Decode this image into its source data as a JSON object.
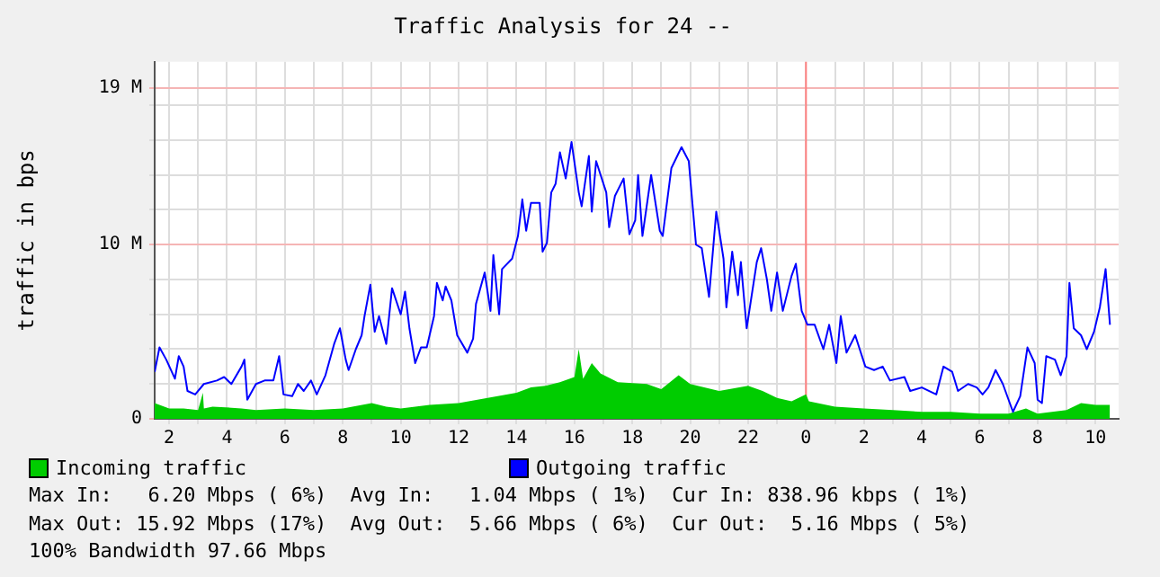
{
  "chart_data": {
    "type": "line",
    "title": "Traffic Analysis for 24 --",
    "ylabel": "traffic in bps",
    "xlim": [
      "--01-01T01:30",
      "--01-02T10:48"
    ],
    "xticks": [
      {
        "value": "--01-01T02:00",
        "label": "2"
      },
      {
        "value": "--01-01T03:00",
        "label": null
      },
      {
        "value": "--01-01T04:00",
        "label": "4"
      },
      {
        "value": "--01-01T05:00",
        "label": null
      },
      {
        "value": "--01-01T06:00",
        "label": "6"
      },
      {
        "value": "--01-01T07:00",
        "label": null
      },
      {
        "value": "--01-01T08:00",
        "label": "8"
      },
      {
        "value": "--01-01T09:00",
        "label": null
      },
      {
        "value": "--01-01T10:00",
        "label": "10"
      },
      {
        "value": "--01-01T11:00",
        "label": null
      },
      {
        "value": "--01-01T12:00",
        "label": "12"
      },
      {
        "value": "--01-01T13:00",
        "label": null
      },
      {
        "value": "--01-01T14:00",
        "label": "14"
      },
      {
        "value": "--01-01T15:00",
        "label": null
      },
      {
        "value": "--01-01T16:00",
        "label": "16"
      },
      {
        "value": "--01-01T17:00",
        "label": null
      },
      {
        "value": "--01-01T18:00",
        "label": "18"
      },
      {
        "value": "--01-01T19:00",
        "label": null
      },
      {
        "value": "--01-01T20:00",
        "label": "20"
      },
      {
        "value": "--01-01T21:00",
        "label": null
      },
      {
        "value": "--01-01T22:00",
        "label": "22"
      },
      {
        "value": "--01-01T23:00",
        "label": null
      },
      {
        "value": "--01-02T00:00",
        "label": "0"
      },
      {
        "value": "--01-02T01:00",
        "label": null
      },
      {
        "value": "--01-02T02:00",
        "label": "2"
      },
      {
        "value": "--01-02T03:00",
        "label": null
      },
      {
        "value": "--01-02T04:00",
        "label": "4"
      },
      {
        "value": "--01-02T05:00",
        "label": null
      },
      {
        "value": "--01-02T06:00",
        "label": "6"
      },
      {
        "value": "--01-02T07:00",
        "label": null
      },
      {
        "value": "--01-02T08:00",
        "label": "8"
      },
      {
        "value": "--01-02T09:00",
        "label": null
      },
      {
        "value": "--01-02T10:00",
        "label": "10"
      }
    ],
    "ylim": [
      0,
      20.5
    ],
    "yticks": [
      {
        "value": 0,
        "label": "0"
      },
      {
        "value": 2,
        "label": null
      },
      {
        "value": 4,
        "label": null
      },
      {
        "value": 6,
        "label": null
      },
      {
        "value": 8,
        "label": null
      },
      {
        "value": 10,
        "label": "10 M"
      },
      {
        "value": 12,
        "label": null
      },
      {
        "value": 14,
        "label": null
      },
      {
        "value": 16,
        "label": null
      },
      {
        "value": 18,
        "label": null
      },
      {
        "value": 19,
        "label": "19 M"
      }
    ],
    "grid": true,
    "legend": "bottom",
    "marker": "none",
    "ref_lines": [
      {
        "axis": "x",
        "value": "--01-02T00:00",
        "color": "#ff8080"
      }
    ],
    "series": [
      {
        "name": "Incoming traffic",
        "type": "area",
        "color": "#00cc00",
        "x": [
          "--01-01T01:30",
          "--01-01T02:00",
          "--01-01T02:30",
          "--01-01T03:00",
          "--01-01T03:10",
          "--01-01T03:12",
          "--01-01T03:30",
          "--01-01T04:30",
          "--01-01T05:00",
          "--01-01T06:00",
          "--01-01T07:00",
          "--01-01T08:00",
          "--01-01T09:00",
          "--01-01T09:30",
          "--01-01T10:00",
          "--01-01T11:00",
          "--01-01T12:00",
          "--01-01T13:00",
          "--01-01T14:00",
          "--01-01T14:30",
          "--01-01T15:00",
          "--01-01T15:30",
          "--01-01T16:00",
          "--01-01T16:09",
          "--01-01T16:18",
          "--01-01T16:36",
          "--01-01T16:54",
          "--01-01T17:30",
          "--01-01T18:30",
          "--01-01T19:00",
          "--01-01T19:36",
          "--01-01T20:00",
          "--01-01T21:00",
          "--01-01T22:00",
          "--01-01T22:30",
          "--01-01T23:00",
          "--01-01T23:30",
          "--01-02T00:00",
          "--01-02T00:06",
          "--01-02T01:00",
          "--01-02T02:00",
          "--01-02T03:00",
          "--01-02T04:00",
          "--01-02T05:00",
          "--01-02T06:00",
          "--01-02T07:00",
          "--01-02T07:36",
          "--01-02T08:00",
          "--01-02T09:00",
          "--01-02T09:30",
          "--01-02T10:00",
          "--01-02T10:30"
        ],
        "values": [
          0.9,
          0.6,
          0.6,
          0.5,
          1.5,
          0.6,
          0.7,
          0.6,
          0.5,
          0.6,
          0.5,
          0.6,
          0.9,
          0.7,
          0.6,
          0.8,
          0.9,
          1.2,
          1.5,
          1.8,
          1.9,
          2.1,
          2.4,
          4.0,
          2.3,
          3.2,
          2.6,
          2.1,
          2.0,
          1.7,
          2.5,
          2.0,
          1.6,
          1.9,
          1.6,
          1.2,
          1.0,
          1.4,
          1.0,
          0.7,
          0.6,
          0.5,
          0.4,
          0.4,
          0.3,
          0.3,
          0.6,
          0.3,
          0.5,
          0.9,
          0.8,
          0.8
        ]
      },
      {
        "name": "Outgoing traffic",
        "type": "line",
        "color": "#0000ff",
        "x": [
          "--01-01T01:30",
          "--01-01T01:40",
          "--01-01T01:54",
          "--01-01T02:12",
          "--01-01T02:20",
          "--01-01T02:30",
          "--01-01T02:38",
          "--01-01T02:54",
          "--01-01T03:12",
          "--01-01T03:39",
          "--01-01T03:54",
          "--01-01T04:09",
          "--01-01T04:30",
          "--01-01T04:36",
          "--01-01T04:42",
          "--01-01T05:00",
          "--01-01T05:18",
          "--01-01T05:36",
          "--01-01T05:48",
          "--01-01T05:57",
          "--01-01T06:15",
          "--01-01T06:27",
          "--01-01T06:39",
          "--01-01T06:54",
          "--01-01T07:06",
          "--01-01T07:24",
          "--01-01T07:42",
          "--01-01T07:54",
          "--01-01T08:06",
          "--01-01T08:12",
          "--01-01T08:27",
          "--01-01T08:39",
          "--01-01T08:45",
          "--01-01T08:57",
          "--01-01T09:06",
          "--01-01T09:15",
          "--01-01T09:30",
          "--01-01T09:42",
          "--01-01T10:00",
          "--01-01T10:09",
          "--01-01T10:18",
          "--01-01T10:30",
          "--01-01T10:42",
          "--01-01T10:54",
          "--01-01T11:09",
          "--01-01T11:15",
          "--01-01T11:27",
          "--01-01T11:33",
          "--01-01T11:45",
          "--01-01T11:57",
          "--01-01T12:18",
          "--01-01T12:30",
          "--01-01T12:36",
          "--01-01T12:54",
          "--01-01T13:06",
          "--01-01T13:12",
          "--01-01T13:24",
          "--01-01T13:30",
          "--01-01T13:51",
          "--01-01T14:03",
          "--01-01T14:12",
          "--01-01T14:20",
          "--01-01T14:30",
          "--01-01T14:48",
          "--01-01T14:54",
          "--01-01T15:03",
          "--01-01T15:12",
          "--01-01T15:21",
          "--01-01T15:30",
          "--01-01T15:42",
          "--01-01T15:54",
          "--01-01T16:09",
          "--01-01T16:15",
          "--01-01T16:30",
          "--01-01T16:36",
          "--01-01T16:45",
          "--01-01T17:06",
          "--01-01T17:12",
          "--01-01T17:24",
          "--01-01T17:42",
          "--01-01T17:54",
          "--01-01T18:06",
          "--01-01T18:12",
          "--01-01T18:21",
          "--01-01T18:39",
          "--01-01T18:57",
          "--01-01T19:03",
          "--01-01T19:21",
          "--01-01T19:42",
          "--01-01T19:57",
          "--01-01T20:12",
          "--01-01T20:24",
          "--01-01T20:39",
          "--01-01T20:54",
          "--01-01T21:09",
          "--01-01T21:15",
          "--01-01T21:27",
          "--01-01T21:39",
          "--01-01T21:45",
          "--01-01T21:57",
          "--01-01T22:18",
          "--01-01T22:27",
          "--01-01T22:39",
          "--01-01T22:48",
          "--01-01T23:00",
          "--01-01T23:12",
          "--01-01T23:30",
          "--01-01T23:39",
          "--01-01T23:51",
          "--01-02T00:03",
          "--01-02T00:18",
          "--01-02T00:36",
          "--01-02T00:48",
          "--01-02T01:03",
          "--01-02T01:12",
          "--01-02T01:24",
          "--01-02T01:42",
          "--01-02T02:03",
          "--01-02T02:21",
          "--01-02T02:39",
          "--01-02T02:54",
          "--01-02T03:24",
          "--01-02T03:36",
          "--01-02T04:00",
          "--01-02T04:30",
          "--01-02T04:45",
          "--01-02T05:03",
          "--01-02T05:15",
          "--01-02T05:36",
          "--01-02T05:54",
          "--01-02T06:06",
          "--01-02T06:18",
          "--01-02T06:33",
          "--01-02T06:48",
          "--01-02T07:09",
          "--01-02T07:24",
          "--01-02T07:39",
          "--01-02T07:54",
          "--01-02T08:00",
          "--01-02T08:09",
          "--01-02T08:18",
          "--01-02T08:36",
          "--01-02T08:48",
          "--01-02T09:00",
          "--01-02T09:06",
          "--01-02T09:15",
          "--01-02T09:30",
          "--01-02T09:42",
          "--01-02T09:57",
          "--01-02T10:09",
          "--01-02T10:21",
          "--01-02T10:30"
        ],
        "values": [
          2.7,
          4.1,
          3.4,
          2.3,
          3.6,
          3.0,
          1.6,
          1.4,
          2.0,
          2.2,
          2.4,
          2.0,
          3.0,
          3.4,
          1.1,
          2.0,
          2.2,
          2.2,
          3.6,
          1.4,
          1.3,
          2.0,
          1.6,
          2.2,
          1.4,
          2.5,
          4.3,
          5.2,
          3.4,
          2.8,
          4.0,
          4.8,
          5.9,
          7.7,
          5.0,
          5.9,
          4.3,
          7.5,
          6.0,
          7.3,
          5.2,
          3.2,
          4.1,
          4.1,
          5.9,
          7.8,
          6.8,
          7.6,
          6.8,
          4.8,
          3.8,
          4.6,
          6.6,
          8.4,
          6.2,
          9.4,
          6.0,
          8.6,
          9.2,
          10.5,
          12.6,
          10.8,
          12.4,
          12.4,
          9.6,
          10.1,
          13.0,
          13.5,
          15.3,
          13.8,
          15.9,
          13.0,
          12.2,
          15.1,
          11.9,
          14.8,
          13.0,
          11.0,
          12.8,
          13.8,
          10.6,
          11.4,
          14.0,
          10.5,
          14.0,
          10.8,
          10.5,
          14.4,
          15.6,
          14.8,
          10.0,
          9.8,
          7.0,
          11.9,
          9.2,
          6.4,
          9.6,
          7.1,
          9.0,
          5.2,
          9.0,
          9.8,
          8.0,
          6.2,
          8.4,
          6.2,
          8.2,
          8.9,
          6.2,
          5.4,
          5.4,
          4.0,
          5.4,
          3.2,
          5.9,
          3.8,
          4.8,
          3.0,
          2.8,
          3.0,
          2.2,
          2.4,
          1.6,
          1.8,
          1.4,
          3.0,
          2.7,
          1.6,
          2.0,
          1.8,
          1.4,
          1.8,
          2.8,
          2.0,
          0.4,
          1.3,
          4.1,
          3.2,
          1.1,
          0.9,
          3.6,
          3.4,
          2.5,
          3.6,
          7.8,
          5.2,
          4.8,
          4.0,
          5.0,
          6.4,
          8.6,
          5.4
        ]
      }
    ],
    "annotations": [
      "Max In:   6.20 Mbps ( 6%)  Avg In:   1.04 Mbps ( 1%)  Cur In: 838.96 kbps ( 1%)",
      "Max Out: 15.92 Mbps (17%)  Avg Out:  5.66 Mbps ( 6%)  Cur Out:  5.16 Mbps ( 5%)",
      "100% Bandwidth 97.66 Mbps"
    ]
  }
}
